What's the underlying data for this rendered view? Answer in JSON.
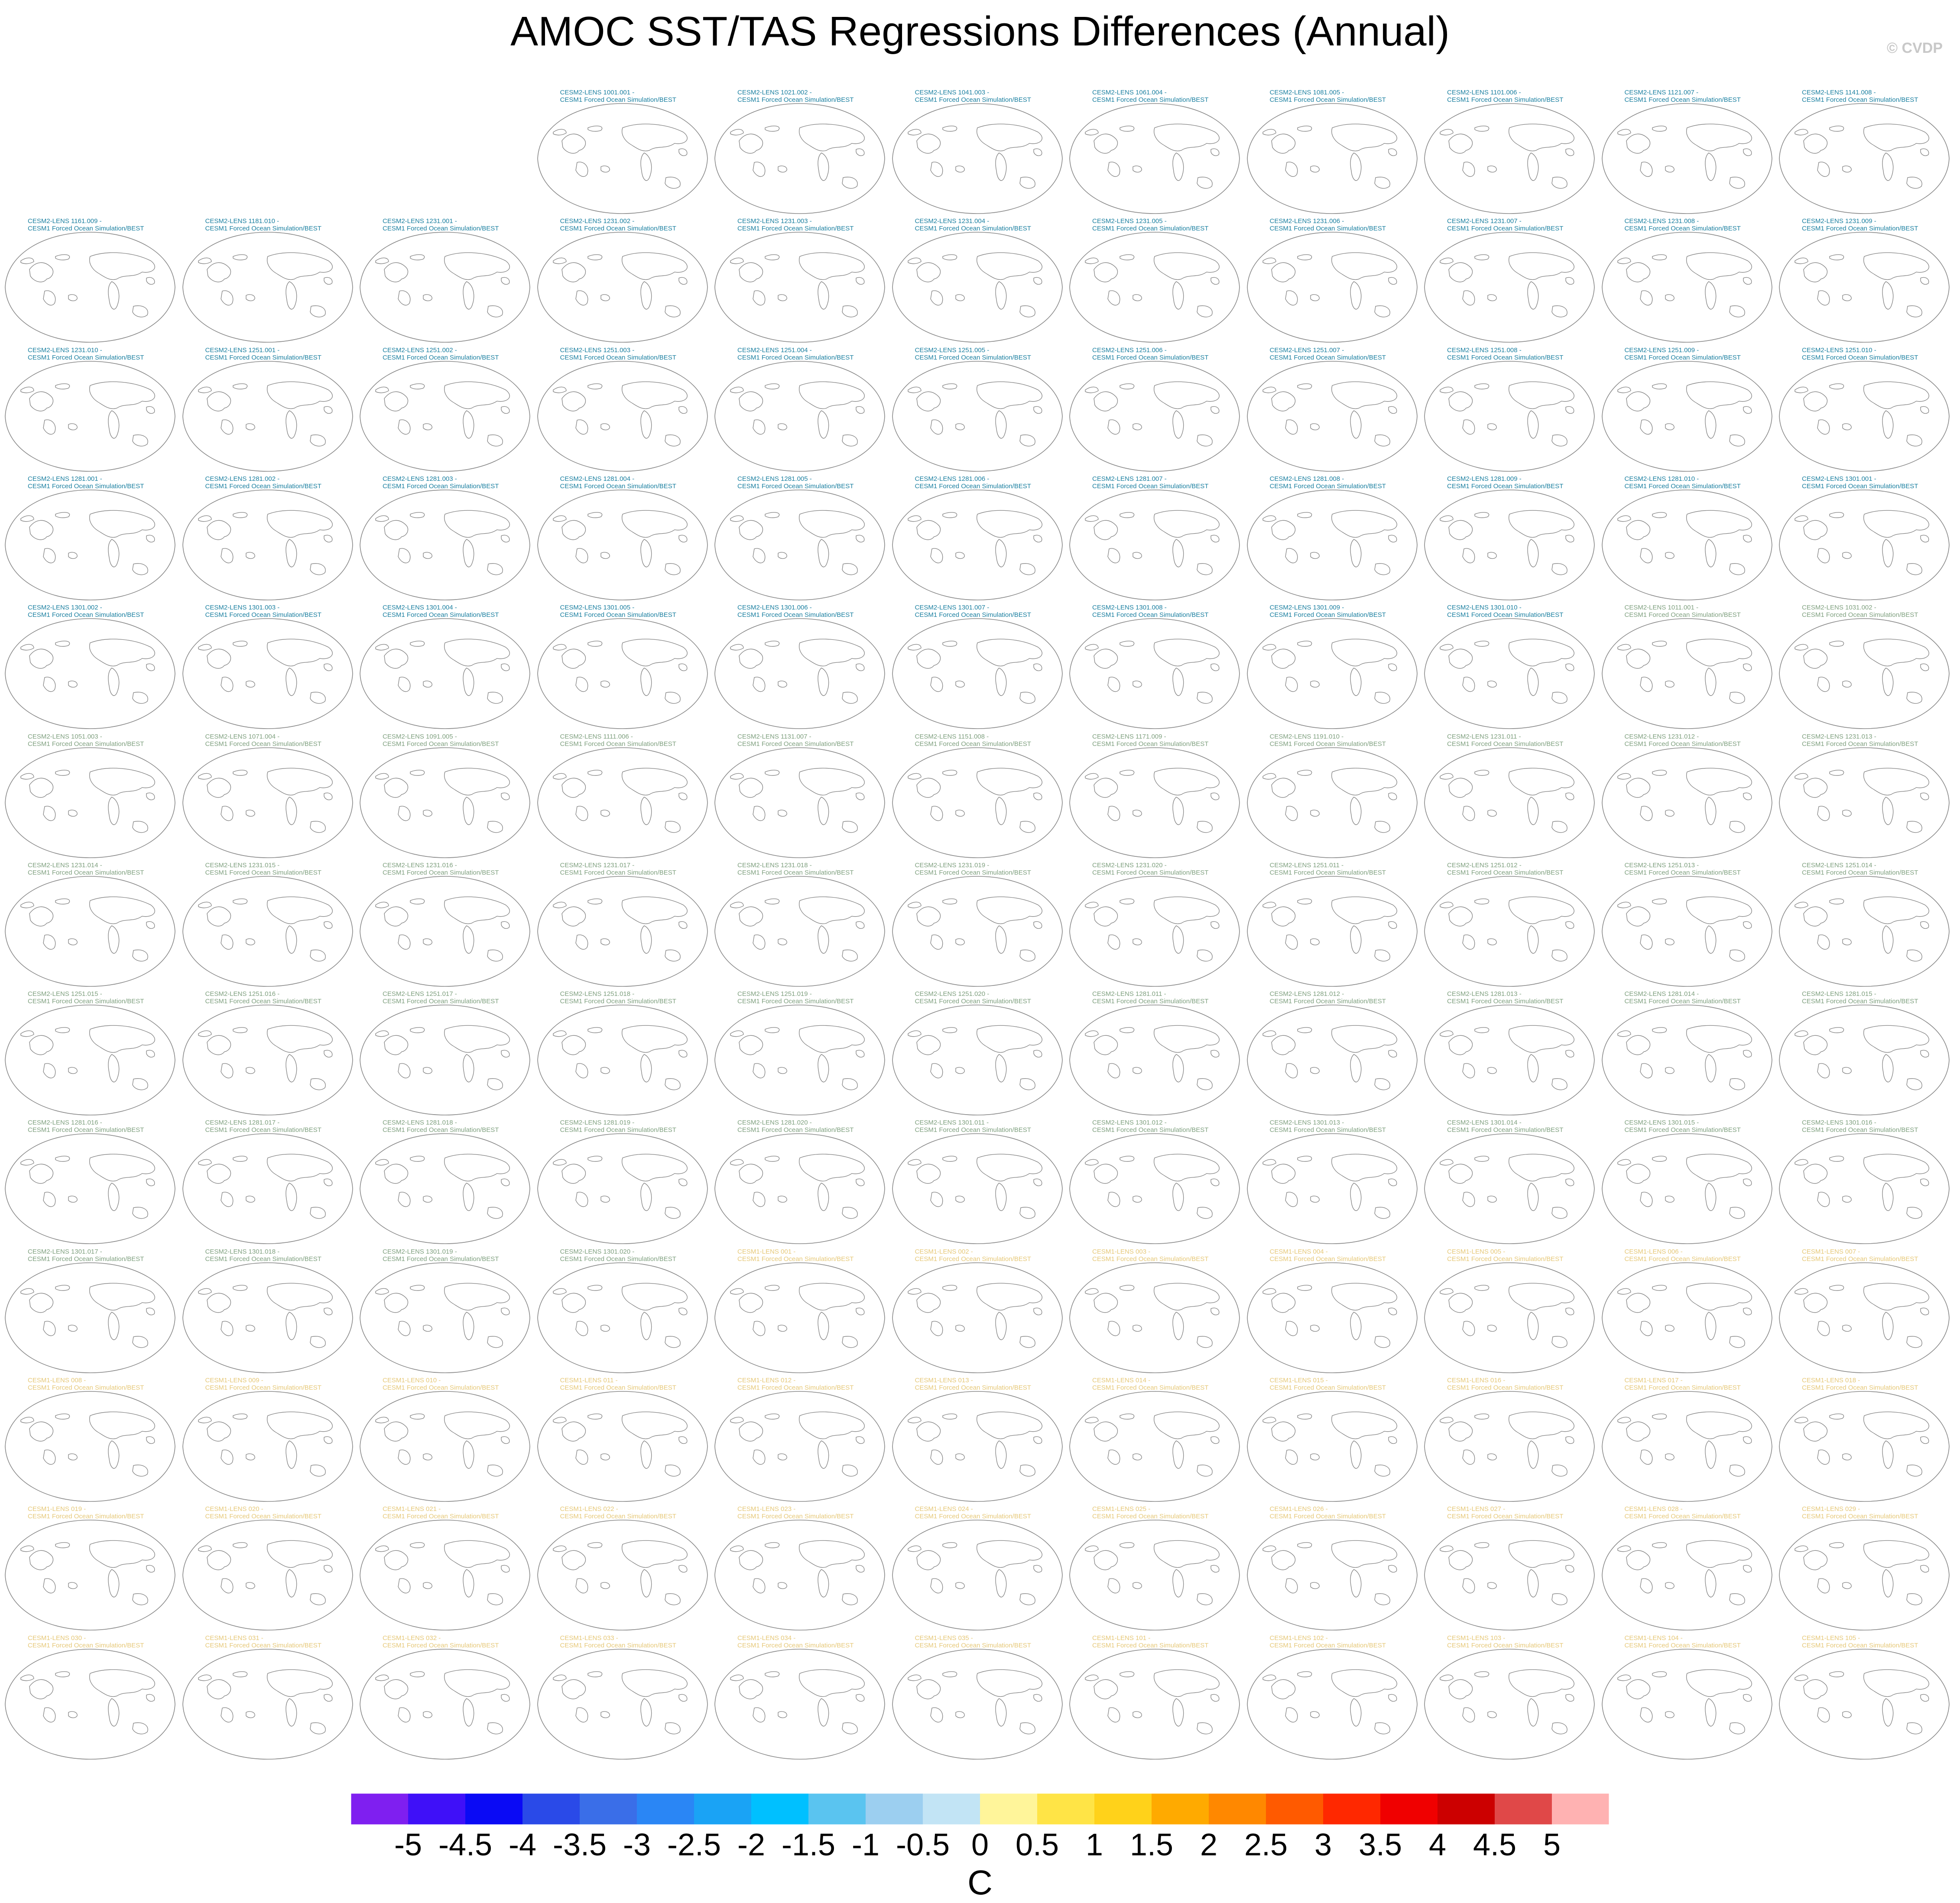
{
  "title": "AMOC SST/TAS Regressions Differences (Annual)",
  "copyright": "© CVDP",
  "colors": {
    "cesm2_dark": "#1a7fa0",
    "cesm2_green": "#7fa07f",
    "cesm1_yellow": "#e6c878",
    "coastline": "#808080"
  },
  "chart_data": {
    "type": "heatmap",
    "title": "AMOC SST/TAS Regressions Differences (Annual)",
    "projection": "robinson-global",
    "data_shown": "none (blank maps, coastlines only)",
    "panel_subtitle": "CESM1 Forced Ocean Simulation/BEST",
    "panels": [
      {
        "name": "CESM2-LENS 1001.001 -",
        "group": "cesm2_dark"
      },
      {
        "name": "CESM2-LENS 1021.002 -",
        "group": "cesm2_dark"
      },
      {
        "name": "CESM2-LENS 1041.003 -",
        "group": "cesm2_dark"
      },
      {
        "name": "CESM2-LENS 1061.004 -",
        "group": "cesm2_dark"
      },
      {
        "name": "CESM2-LENS 1081.005 -",
        "group": "cesm2_dark"
      },
      {
        "name": "CESM2-LENS 1101.006 -",
        "group": "cesm2_dark"
      },
      {
        "name": "CESM2-LENS 1121.007 -",
        "group": "cesm2_dark"
      },
      {
        "name": "CESM2-LENS 1141.008 -",
        "group": "cesm2_dark"
      },
      {
        "name": "CESM2-LENS 1161.009 -",
        "group": "cesm2_dark"
      },
      {
        "name": "CESM2-LENS 1181.010 -",
        "group": "cesm2_dark"
      },
      {
        "name": "CESM2-LENS 1231.001 -",
        "group": "cesm2_dark"
      },
      {
        "name": "CESM2-LENS 1231.002 -",
        "group": "cesm2_dark"
      },
      {
        "name": "CESM2-LENS 1231.003 -",
        "group": "cesm2_dark"
      },
      {
        "name": "CESM2-LENS 1231.004 -",
        "group": "cesm2_dark"
      },
      {
        "name": "CESM2-LENS 1231.005 -",
        "group": "cesm2_dark"
      },
      {
        "name": "CESM2-LENS 1231.006 -",
        "group": "cesm2_dark"
      },
      {
        "name": "CESM2-LENS 1231.007 -",
        "group": "cesm2_dark"
      },
      {
        "name": "CESM2-LENS 1231.008 -",
        "group": "cesm2_dark"
      },
      {
        "name": "CESM2-LENS 1231.009 -",
        "group": "cesm2_dark"
      },
      {
        "name": "CESM2-LENS 1231.010 -",
        "group": "cesm2_dark"
      },
      {
        "name": "CESM2-LENS 1251.001 -",
        "group": "cesm2_dark"
      },
      {
        "name": "CESM2-LENS 1251.002 -",
        "group": "cesm2_dark"
      },
      {
        "name": "CESM2-LENS 1251.003 -",
        "group": "cesm2_dark"
      },
      {
        "name": "CESM2-LENS 1251.004 -",
        "group": "cesm2_dark"
      },
      {
        "name": "CESM2-LENS 1251.005 -",
        "group": "cesm2_dark"
      },
      {
        "name": "CESM2-LENS 1251.006 -",
        "group": "cesm2_dark"
      },
      {
        "name": "CESM2-LENS 1251.007 -",
        "group": "cesm2_dark"
      },
      {
        "name": "CESM2-LENS 1251.008 -",
        "group": "cesm2_dark"
      },
      {
        "name": "CESM2-LENS 1251.009 -",
        "group": "cesm2_dark"
      },
      {
        "name": "CESM2-LENS 1251.010 -",
        "group": "cesm2_dark"
      },
      {
        "name": "CESM2-LENS 1281.001 -",
        "group": "cesm2_dark"
      },
      {
        "name": "CESM2-LENS 1281.002 -",
        "group": "cesm2_dark"
      },
      {
        "name": "CESM2-LENS 1281.003 -",
        "group": "cesm2_dark"
      },
      {
        "name": "CESM2-LENS 1281.004 -",
        "group": "cesm2_dark"
      },
      {
        "name": "CESM2-LENS 1281.005 -",
        "group": "cesm2_dark"
      },
      {
        "name": "CESM2-LENS 1281.006 -",
        "group": "cesm2_dark"
      },
      {
        "name": "CESM2-LENS 1281.007 -",
        "group": "cesm2_dark"
      },
      {
        "name": "CESM2-LENS 1281.008 -",
        "group": "cesm2_dark"
      },
      {
        "name": "CESM2-LENS 1281.009 -",
        "group": "cesm2_dark"
      },
      {
        "name": "CESM2-LENS 1281.010 -",
        "group": "cesm2_dark"
      },
      {
        "name": "CESM2-LENS 1301.001 -",
        "group": "cesm2_dark"
      },
      {
        "name": "CESM2-LENS 1301.002 -",
        "group": "cesm2_dark"
      },
      {
        "name": "CESM2-LENS 1301.003 -",
        "group": "cesm2_dark"
      },
      {
        "name": "CESM2-LENS 1301.004 -",
        "group": "cesm2_dark"
      },
      {
        "name": "CESM2-LENS 1301.005 -",
        "group": "cesm2_dark"
      },
      {
        "name": "CESM2-LENS 1301.006 -",
        "group": "cesm2_dark"
      },
      {
        "name": "CESM2-LENS 1301.007 -",
        "group": "cesm2_dark"
      },
      {
        "name": "CESM2-LENS 1301.008 -",
        "group": "cesm2_dark"
      },
      {
        "name": "CESM2-LENS 1301.009 -",
        "group": "cesm2_dark"
      },
      {
        "name": "CESM2-LENS 1301.010 -",
        "group": "cesm2_dark"
      },
      {
        "name": "CESM2-LENS 1011.001 -",
        "group": "cesm2_green"
      },
      {
        "name": "CESM2-LENS 1031.002 -",
        "group": "cesm2_green"
      },
      {
        "name": "CESM2-LENS 1051.003 -",
        "group": "cesm2_green"
      },
      {
        "name": "CESM2-LENS 1071.004 -",
        "group": "cesm2_green"
      },
      {
        "name": "CESM2-LENS 1091.005 -",
        "group": "cesm2_green"
      },
      {
        "name": "CESM2-LENS 1111.006 -",
        "group": "cesm2_green"
      },
      {
        "name": "CESM2-LENS 1131.007 -",
        "group": "cesm2_green"
      },
      {
        "name": "CESM2-LENS 1151.008 -",
        "group": "cesm2_green"
      },
      {
        "name": "CESM2-LENS 1171.009 -",
        "group": "cesm2_green"
      },
      {
        "name": "CESM2-LENS 1191.010 -",
        "group": "cesm2_green"
      },
      {
        "name": "CESM2-LENS 1231.011 -",
        "group": "cesm2_green"
      },
      {
        "name": "CESM2-LENS 1231.012 -",
        "group": "cesm2_green"
      },
      {
        "name": "CESM2-LENS 1231.013 -",
        "group": "cesm2_green"
      },
      {
        "name": "CESM2-LENS 1231.014 -",
        "group": "cesm2_green"
      },
      {
        "name": "CESM2-LENS 1231.015 -",
        "group": "cesm2_green"
      },
      {
        "name": "CESM2-LENS 1231.016 -",
        "group": "cesm2_green"
      },
      {
        "name": "CESM2-LENS 1231.017 -",
        "group": "cesm2_green"
      },
      {
        "name": "CESM2-LENS 1231.018 -",
        "group": "cesm2_green"
      },
      {
        "name": "CESM2-LENS 1231.019 -",
        "group": "cesm2_green"
      },
      {
        "name": "CESM2-LENS 1231.020 -",
        "group": "cesm2_green"
      },
      {
        "name": "CESM2-LENS 1251.011 -",
        "group": "cesm2_green"
      },
      {
        "name": "CESM2-LENS 1251.012 -",
        "group": "cesm2_green"
      },
      {
        "name": "CESM2-LENS 1251.013 -",
        "group": "cesm2_green"
      },
      {
        "name": "CESM2-LENS 1251.014 -",
        "group": "cesm2_green"
      },
      {
        "name": "CESM2-LENS 1251.015 -",
        "group": "cesm2_green"
      },
      {
        "name": "CESM2-LENS 1251.016 -",
        "group": "cesm2_green"
      },
      {
        "name": "CESM2-LENS 1251.017 -",
        "group": "cesm2_green"
      },
      {
        "name": "CESM2-LENS 1251.018 -",
        "group": "cesm2_green"
      },
      {
        "name": "CESM2-LENS 1251.019 -",
        "group": "cesm2_green"
      },
      {
        "name": "CESM2-LENS 1251.020 -",
        "group": "cesm2_green"
      },
      {
        "name": "CESM2-LENS 1281.011 -",
        "group": "cesm2_green"
      },
      {
        "name": "CESM2-LENS 1281.012 -",
        "group": "cesm2_green"
      },
      {
        "name": "CESM2-LENS 1281.013 -",
        "group": "cesm2_green"
      },
      {
        "name": "CESM2-LENS 1281.014 -",
        "group": "cesm2_green"
      },
      {
        "name": "CESM2-LENS 1281.015 -",
        "group": "cesm2_green"
      },
      {
        "name": "CESM2-LENS 1281.016 -",
        "group": "cesm2_green"
      },
      {
        "name": "CESM2-LENS 1281.017 -",
        "group": "cesm2_green"
      },
      {
        "name": "CESM2-LENS 1281.018 -",
        "group": "cesm2_green"
      },
      {
        "name": "CESM2-LENS 1281.019 -",
        "group": "cesm2_green"
      },
      {
        "name": "CESM2-LENS 1281.020 -",
        "group": "cesm2_green"
      },
      {
        "name": "CESM2-LENS 1301.011 -",
        "group": "cesm2_green"
      },
      {
        "name": "CESM2-LENS 1301.012 -",
        "group": "cesm2_green"
      },
      {
        "name": "CESM2-LENS 1301.013 -",
        "group": "cesm2_green"
      },
      {
        "name": "CESM2-LENS 1301.014 -",
        "group": "cesm2_green"
      },
      {
        "name": "CESM2-LENS 1301.015 -",
        "group": "cesm2_green"
      },
      {
        "name": "CESM2-LENS 1301.016 -",
        "group": "cesm2_green"
      },
      {
        "name": "CESM2-LENS 1301.017 -",
        "group": "cesm2_green"
      },
      {
        "name": "CESM2-LENS 1301.018 -",
        "group": "cesm2_green"
      },
      {
        "name": "CESM2-LENS 1301.019 -",
        "group": "cesm2_green"
      },
      {
        "name": "CESM2-LENS 1301.020 -",
        "group": "cesm2_green"
      },
      {
        "name": "CESM1-LENS 001 -",
        "group": "cesm1_yellow"
      },
      {
        "name": "CESM1-LENS 002 -",
        "group": "cesm1_yellow"
      },
      {
        "name": "CESM1-LENS 003 -",
        "group": "cesm1_yellow"
      },
      {
        "name": "CESM1-LENS 004 -",
        "group": "cesm1_yellow"
      },
      {
        "name": "CESM1-LENS 005 -",
        "group": "cesm1_yellow"
      },
      {
        "name": "CESM1-LENS 006 -",
        "group": "cesm1_yellow"
      },
      {
        "name": "CESM1-LENS 007 -",
        "group": "cesm1_yellow"
      },
      {
        "name": "CESM1-LENS 008 -",
        "group": "cesm1_yellow"
      },
      {
        "name": "CESM1-LENS 009 -",
        "group": "cesm1_yellow"
      },
      {
        "name": "CESM1-LENS 010 -",
        "group": "cesm1_yellow"
      },
      {
        "name": "CESM1-LENS 011 -",
        "group": "cesm1_yellow"
      },
      {
        "name": "CESM1-LENS 012 -",
        "group": "cesm1_yellow"
      },
      {
        "name": "CESM1-LENS 013 -",
        "group": "cesm1_yellow"
      },
      {
        "name": "CESM1-LENS 014 -",
        "group": "cesm1_yellow"
      },
      {
        "name": "CESM1-LENS 015 -",
        "group": "cesm1_yellow"
      },
      {
        "name": "CESM1-LENS 016 -",
        "group": "cesm1_yellow"
      },
      {
        "name": "CESM1-LENS 017 -",
        "group": "cesm1_yellow"
      },
      {
        "name": "CESM1-LENS 018 -",
        "group": "cesm1_yellow"
      },
      {
        "name": "CESM1-LENS 019 -",
        "group": "cesm1_yellow"
      },
      {
        "name": "CESM1-LENS 020 -",
        "group": "cesm1_yellow"
      },
      {
        "name": "CESM1-LENS 021 -",
        "group": "cesm1_yellow"
      },
      {
        "name": "CESM1-LENS 022 -",
        "group": "cesm1_yellow"
      },
      {
        "name": "CESM1-LENS 023 -",
        "group": "cesm1_yellow"
      },
      {
        "name": "CESM1-LENS 024 -",
        "group": "cesm1_yellow"
      },
      {
        "name": "CESM1-LENS 025 -",
        "group": "cesm1_yellow"
      },
      {
        "name": "CESM1-LENS 026 -",
        "group": "cesm1_yellow"
      },
      {
        "name": "CESM1-LENS 027 -",
        "group": "cesm1_yellow"
      },
      {
        "name": "CESM1-LENS 028 -",
        "group": "cesm1_yellow"
      },
      {
        "name": "CESM1-LENS 029 -",
        "group": "cesm1_yellow"
      },
      {
        "name": "CESM1-LENS 030 -",
        "group": "cesm1_yellow"
      },
      {
        "name": "CESM1-LENS 031 -",
        "group": "cesm1_yellow"
      },
      {
        "name": "CESM1-LENS 032 -",
        "group": "cesm1_yellow"
      },
      {
        "name": "CESM1-LENS 033 -",
        "group": "cesm1_yellow"
      },
      {
        "name": "CESM1-LENS 034 -",
        "group": "cesm1_yellow"
      },
      {
        "name": "CESM1-LENS 035 -",
        "group": "cesm1_yellow"
      },
      {
        "name": "CESM1-LENS 101 -",
        "group": "cesm1_yellow"
      },
      {
        "name": "CESM1-LENS 102 -",
        "group": "cesm1_yellow"
      },
      {
        "name": "CESM1-LENS 103 -",
        "group": "cesm1_yellow"
      },
      {
        "name": "CESM1-LENS 104 -",
        "group": "cesm1_yellow"
      },
      {
        "name": "CESM1-LENS 105 -",
        "group": "cesm1_yellow"
      }
    ],
    "colorbar": {
      "units": "C",
      "levels": [
        -5,
        -4.5,
        -4,
        -3.5,
        -3,
        -2.5,
        -2,
        -1.5,
        -1,
        -0.5,
        0,
        0.5,
        1,
        1.5,
        2,
        2.5,
        3,
        3.5,
        4,
        4.5,
        5
      ],
      "tick_labels": [
        "-5",
        "-4.5",
        "-4",
        "-3.5",
        "-3",
        "-2.5",
        "-2",
        "-1.5",
        "-1",
        "-0.5",
        "0",
        "0.5",
        "1",
        "1.5",
        "2",
        "2.5",
        "3",
        "3.5",
        "4",
        "4.5",
        "5"
      ],
      "colors": [
        "#7f1ff0",
        "#3f10f8",
        "#0a0af5",
        "#2a4ae8",
        "#3a6ee8",
        "#2a86f5",
        "#1aa3f5",
        "#00c0ff",
        "#5ac4f0",
        "#9ccff0",
        "#c2e4f5",
        "#fff59a",
        "#ffe446",
        "#ffd21a",
        "#ffaa00",
        "#ff8800",
        "#ff5a00",
        "#ff2800",
        "#f00000",
        "#cc0000",
        "#e04848",
        "#ffb2b2"
      ]
    }
  }
}
